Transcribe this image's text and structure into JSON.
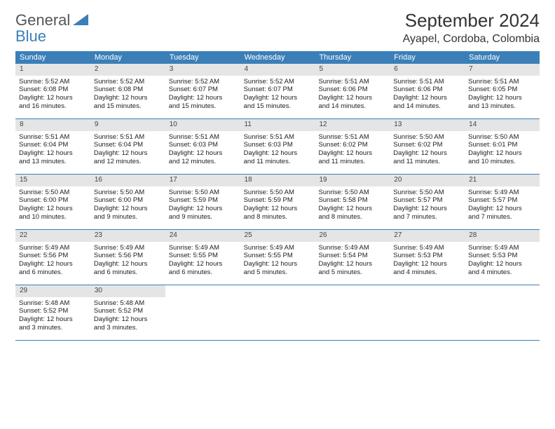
{
  "brand": {
    "name1": "General",
    "name2": "Blue",
    "accent": "#3b7fb8"
  },
  "title": "September 2024",
  "location": "Ayapel, Cordoba, Colombia",
  "weekdays": [
    "Sunday",
    "Monday",
    "Tuesday",
    "Wednesday",
    "Thursday",
    "Friday",
    "Saturday"
  ],
  "colors": {
    "header_bg": "#3b7fb8",
    "header_text": "#ffffff",
    "daynum_bg": "#e5e5e5",
    "border": "#3b7fb8",
    "text": "#222222"
  },
  "fonts": {
    "title_size": 26,
    "location_size": 16,
    "weekday_size": 11,
    "cell_size": 9.5
  },
  "weeks": [
    [
      {
        "day": "1",
        "sunrise": "Sunrise: 5:52 AM",
        "sunset": "Sunset: 6:08 PM",
        "daylight1": "Daylight: 12 hours",
        "daylight2": "and 16 minutes."
      },
      {
        "day": "2",
        "sunrise": "Sunrise: 5:52 AM",
        "sunset": "Sunset: 6:08 PM",
        "daylight1": "Daylight: 12 hours",
        "daylight2": "and 15 minutes."
      },
      {
        "day": "3",
        "sunrise": "Sunrise: 5:52 AM",
        "sunset": "Sunset: 6:07 PM",
        "daylight1": "Daylight: 12 hours",
        "daylight2": "and 15 minutes."
      },
      {
        "day": "4",
        "sunrise": "Sunrise: 5:52 AM",
        "sunset": "Sunset: 6:07 PM",
        "daylight1": "Daylight: 12 hours",
        "daylight2": "and 15 minutes."
      },
      {
        "day": "5",
        "sunrise": "Sunrise: 5:51 AM",
        "sunset": "Sunset: 6:06 PM",
        "daylight1": "Daylight: 12 hours",
        "daylight2": "and 14 minutes."
      },
      {
        "day": "6",
        "sunrise": "Sunrise: 5:51 AM",
        "sunset": "Sunset: 6:06 PM",
        "daylight1": "Daylight: 12 hours",
        "daylight2": "and 14 minutes."
      },
      {
        "day": "7",
        "sunrise": "Sunrise: 5:51 AM",
        "sunset": "Sunset: 6:05 PM",
        "daylight1": "Daylight: 12 hours",
        "daylight2": "and 13 minutes."
      }
    ],
    [
      {
        "day": "8",
        "sunrise": "Sunrise: 5:51 AM",
        "sunset": "Sunset: 6:04 PM",
        "daylight1": "Daylight: 12 hours",
        "daylight2": "and 13 minutes."
      },
      {
        "day": "9",
        "sunrise": "Sunrise: 5:51 AM",
        "sunset": "Sunset: 6:04 PM",
        "daylight1": "Daylight: 12 hours",
        "daylight2": "and 12 minutes."
      },
      {
        "day": "10",
        "sunrise": "Sunrise: 5:51 AM",
        "sunset": "Sunset: 6:03 PM",
        "daylight1": "Daylight: 12 hours",
        "daylight2": "and 12 minutes."
      },
      {
        "day": "11",
        "sunrise": "Sunrise: 5:51 AM",
        "sunset": "Sunset: 6:03 PM",
        "daylight1": "Daylight: 12 hours",
        "daylight2": "and 11 minutes."
      },
      {
        "day": "12",
        "sunrise": "Sunrise: 5:51 AM",
        "sunset": "Sunset: 6:02 PM",
        "daylight1": "Daylight: 12 hours",
        "daylight2": "and 11 minutes."
      },
      {
        "day": "13",
        "sunrise": "Sunrise: 5:50 AM",
        "sunset": "Sunset: 6:02 PM",
        "daylight1": "Daylight: 12 hours",
        "daylight2": "and 11 minutes."
      },
      {
        "day": "14",
        "sunrise": "Sunrise: 5:50 AM",
        "sunset": "Sunset: 6:01 PM",
        "daylight1": "Daylight: 12 hours",
        "daylight2": "and 10 minutes."
      }
    ],
    [
      {
        "day": "15",
        "sunrise": "Sunrise: 5:50 AM",
        "sunset": "Sunset: 6:00 PM",
        "daylight1": "Daylight: 12 hours",
        "daylight2": "and 10 minutes."
      },
      {
        "day": "16",
        "sunrise": "Sunrise: 5:50 AM",
        "sunset": "Sunset: 6:00 PM",
        "daylight1": "Daylight: 12 hours",
        "daylight2": "and 9 minutes."
      },
      {
        "day": "17",
        "sunrise": "Sunrise: 5:50 AM",
        "sunset": "Sunset: 5:59 PM",
        "daylight1": "Daylight: 12 hours",
        "daylight2": "and 9 minutes."
      },
      {
        "day": "18",
        "sunrise": "Sunrise: 5:50 AM",
        "sunset": "Sunset: 5:59 PM",
        "daylight1": "Daylight: 12 hours",
        "daylight2": "and 8 minutes."
      },
      {
        "day": "19",
        "sunrise": "Sunrise: 5:50 AM",
        "sunset": "Sunset: 5:58 PM",
        "daylight1": "Daylight: 12 hours",
        "daylight2": "and 8 minutes."
      },
      {
        "day": "20",
        "sunrise": "Sunrise: 5:50 AM",
        "sunset": "Sunset: 5:57 PM",
        "daylight1": "Daylight: 12 hours",
        "daylight2": "and 7 minutes."
      },
      {
        "day": "21",
        "sunrise": "Sunrise: 5:49 AM",
        "sunset": "Sunset: 5:57 PM",
        "daylight1": "Daylight: 12 hours",
        "daylight2": "and 7 minutes."
      }
    ],
    [
      {
        "day": "22",
        "sunrise": "Sunrise: 5:49 AM",
        "sunset": "Sunset: 5:56 PM",
        "daylight1": "Daylight: 12 hours",
        "daylight2": "and 6 minutes."
      },
      {
        "day": "23",
        "sunrise": "Sunrise: 5:49 AM",
        "sunset": "Sunset: 5:56 PM",
        "daylight1": "Daylight: 12 hours",
        "daylight2": "and 6 minutes."
      },
      {
        "day": "24",
        "sunrise": "Sunrise: 5:49 AM",
        "sunset": "Sunset: 5:55 PM",
        "daylight1": "Daylight: 12 hours",
        "daylight2": "and 6 minutes."
      },
      {
        "day": "25",
        "sunrise": "Sunrise: 5:49 AM",
        "sunset": "Sunset: 5:55 PM",
        "daylight1": "Daylight: 12 hours",
        "daylight2": "and 5 minutes."
      },
      {
        "day": "26",
        "sunrise": "Sunrise: 5:49 AM",
        "sunset": "Sunset: 5:54 PM",
        "daylight1": "Daylight: 12 hours",
        "daylight2": "and 5 minutes."
      },
      {
        "day": "27",
        "sunrise": "Sunrise: 5:49 AM",
        "sunset": "Sunset: 5:53 PM",
        "daylight1": "Daylight: 12 hours",
        "daylight2": "and 4 minutes."
      },
      {
        "day": "28",
        "sunrise": "Sunrise: 5:49 AM",
        "sunset": "Sunset: 5:53 PM",
        "daylight1": "Daylight: 12 hours",
        "daylight2": "and 4 minutes."
      }
    ],
    [
      {
        "day": "29",
        "sunrise": "Sunrise: 5:48 AM",
        "sunset": "Sunset: 5:52 PM",
        "daylight1": "Daylight: 12 hours",
        "daylight2": "and 3 minutes."
      },
      {
        "day": "30",
        "sunrise": "Sunrise: 5:48 AM",
        "sunset": "Sunset: 5:52 PM",
        "daylight1": "Daylight: 12 hours",
        "daylight2": "and 3 minutes."
      },
      {
        "empty": true
      },
      {
        "empty": true
      },
      {
        "empty": true
      },
      {
        "empty": true
      },
      {
        "empty": true
      }
    ]
  ]
}
